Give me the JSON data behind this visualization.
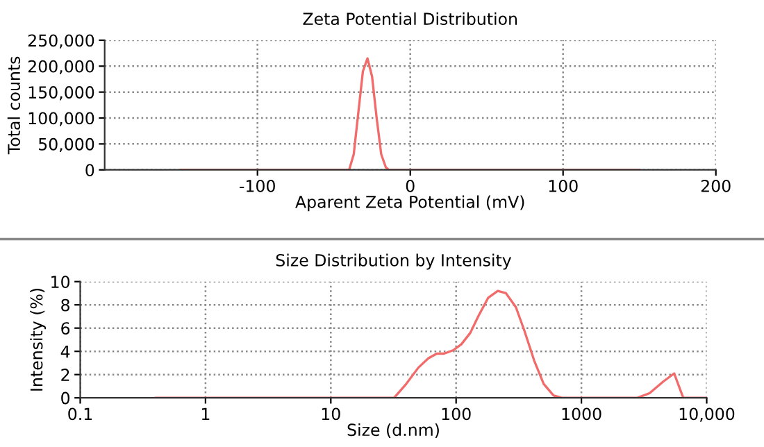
{
  "chart_data": [
    {
      "type": "line",
      "title": "Zeta Potential Distribution",
      "xlabel": "Aparent Zeta Potential (mV)",
      "ylabel": "Total counts",
      "xlim": [
        -200,
        200
      ],
      "xticks": [
        -100,
        0,
        100,
        200
      ],
      "ylim": [
        0,
        250000
      ],
      "yticks": [
        0,
        {
          "value": 50000,
          "label": "50,000"
        },
        {
          "value": 100000,
          "label": "100,000"
        },
        {
          "value": 150000,
          "label": "150,000"
        },
        {
          "value": 200000,
          "label": "200,000"
        },
        {
          "value": 250000,
          "label": "250,000"
        }
      ],
      "grid": true,
      "marker": "none",
      "line_style": "solid",
      "series": [
        {
          "color": "#f26b6b",
          "x": [
            -150,
            -40,
            -37,
            -34,
            -31,
            -28,
            -25,
            -22,
            -19,
            -16,
            -14,
            150
          ],
          "values": [
            0,
            0,
            30000,
            110000,
            190000,
            215000,
            180000,
            100000,
            30000,
            5000,
            0,
            0
          ]
        }
      ]
    },
    {
      "type": "line",
      "title": "Size Distribution by Intensity",
      "xlabel": "Size (d.nm)",
      "ylabel": "Intensity (%)",
      "log": "x",
      "xlim": [
        0.1,
        10000
      ],
      "xticks": [
        0.1,
        1,
        10,
        100,
        1000,
        {
          "value": 10000,
          "label": "10,000"
        }
      ],
      "ylim": [
        0,
        10
      ],
      "yticks": [
        0,
        2,
        4,
        6,
        8,
        10
      ],
      "grid": true,
      "marker": "none",
      "line_style": "solid",
      "series": [
        {
          "color": "#f26b6b",
          "x": [
            0.4,
            32,
            40,
            50,
            60,
            70,
            80,
            95,
            110,
            130,
            150,
            180,
            215,
            250,
            300,
            350,
            420,
            500,
            600,
            700,
            2800,
            3500,
            4500,
            5500,
            6500,
            10000
          ],
          "values": [
            0,
            0,
            1.2,
            2.6,
            3.4,
            3.8,
            3.8,
            4.1,
            4.6,
            5.6,
            7.0,
            8.6,
            9.2,
            9.0,
            7.8,
            5.8,
            3.2,
            1.2,
            0.2,
            0,
            0,
            0.4,
            1.4,
            2.1,
            0,
            0
          ]
        }
      ]
    }
  ]
}
